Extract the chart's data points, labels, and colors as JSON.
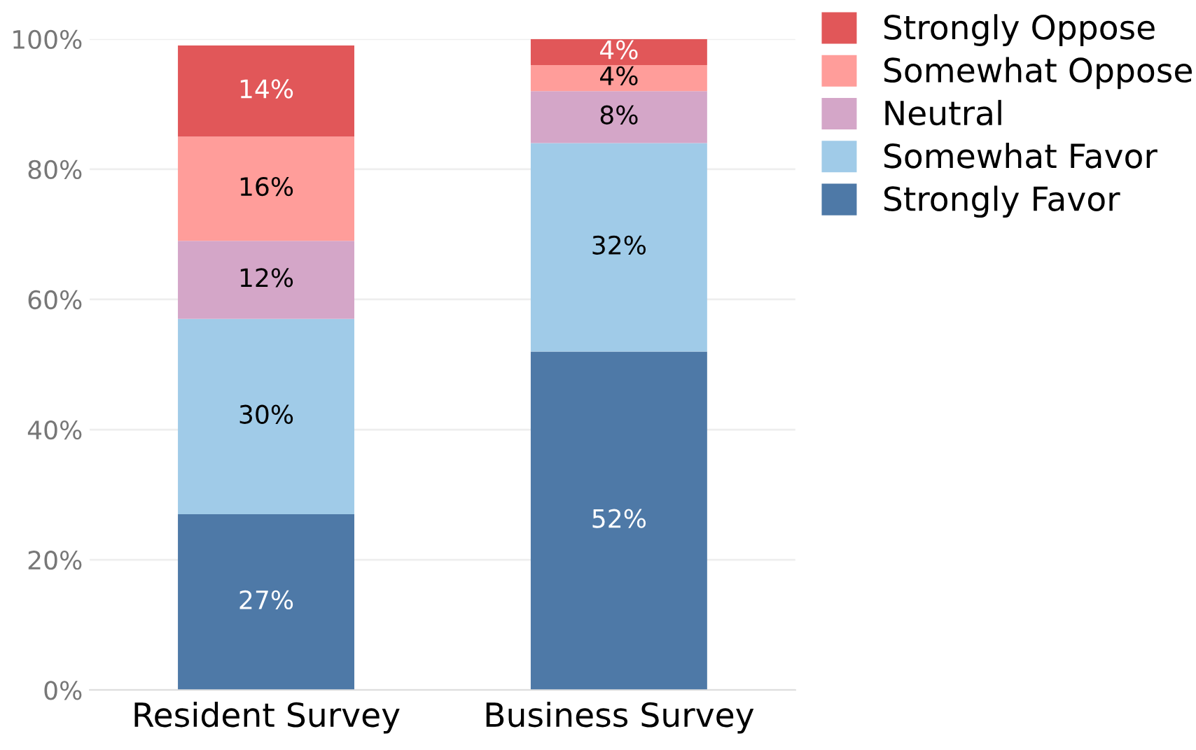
{
  "chart_data": {
    "type": "bar",
    "stacked": true,
    "categories": [
      "Resident Survey",
      "Business Survey"
    ],
    "series": [
      {
        "name": "Strongly Favor",
        "color": "#4e79a7",
        "values": [
          27,
          52
        ],
        "value_labels": [
          "27%",
          "52%"
        ]
      },
      {
        "name": "Somewhat Favor",
        "color": "#a0cbe8",
        "values": [
          30,
          32
        ],
        "value_labels": [
          "30%",
          "32%"
        ]
      },
      {
        "name": "Neutral",
        "color": "#d4a6c8",
        "values": [
          12,
          8
        ],
        "value_labels": [
          "12%",
          "8%"
        ]
      },
      {
        "name": "Somewhat Oppose",
        "color": "#ff9d9a",
        "values": [
          16,
          4
        ],
        "value_labels": [
          "16%",
          "4%"
        ]
      },
      {
        "name": "Strongly Oppose",
        "color": "#e15759",
        "values": [
          14,
          4
        ],
        "value_labels": [
          "14%",
          "4%"
        ]
      }
    ],
    "ylim": [
      0,
      100
    ],
    "yticks": [
      {
        "value": 0,
        "label": "0%"
      },
      {
        "value": 20,
        "label": "20%"
      },
      {
        "value": 40,
        "label": "40%"
      },
      {
        "value": 60,
        "label": "60%"
      },
      {
        "value": 80,
        "label": "80%"
      },
      {
        "value": 100,
        "label": "100%"
      }
    ],
    "grid": "y",
    "legend": "top right"
  }
}
